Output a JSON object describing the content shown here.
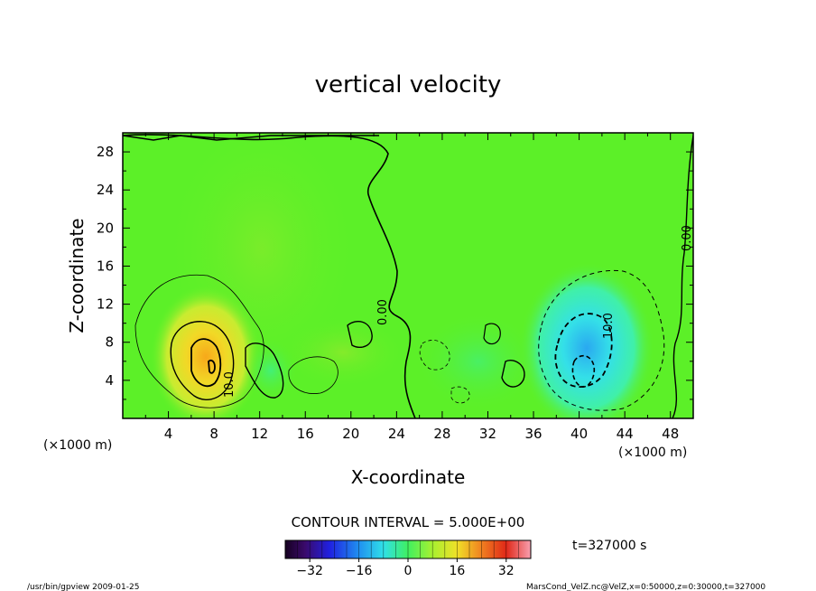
{
  "chart_data": {
    "type": "heatmap",
    "title": "vertical velocity",
    "xlabel": "X-coordinate",
    "ylabel": "Z-coordinate",
    "x_unit_left": "(×1000 m)",
    "x_unit_right": "(×1000 m)",
    "x_ticks": [
      4,
      8,
      12,
      16,
      20,
      24,
      28,
      32,
      36,
      40,
      44,
      48
    ],
    "y_ticks": [
      4,
      8,
      12,
      16,
      20,
      24,
      28
    ],
    "xlim": [
      0,
      50
    ],
    "ylim": [
      0,
      30
    ],
    "contour_interval_text": "CONTOUR INTERVAL = 5.000E+00",
    "contour_labels": [
      "10.0",
      "0.00",
      "10.0",
      "0.00"
    ],
    "colorbar": {
      "ticks": [
        -32,
        -16,
        0,
        16,
        32
      ],
      "range": [
        -40,
        40
      ]
    },
    "time_text": "t=327000 s",
    "features": [
      {
        "name": "updraft",
        "x": 7.8,
        "z": 5.5,
        "peak": 18
      },
      {
        "name": "downdraft",
        "x": 40.5,
        "z": 5.0,
        "peak": -14
      }
    ]
  },
  "footer": {
    "left": "/usr/bin/gpview  2009-01-25",
    "right": "MarsCond_VelZ.nc@VelZ,x=0:50000,z=0:30000,t=327000"
  }
}
